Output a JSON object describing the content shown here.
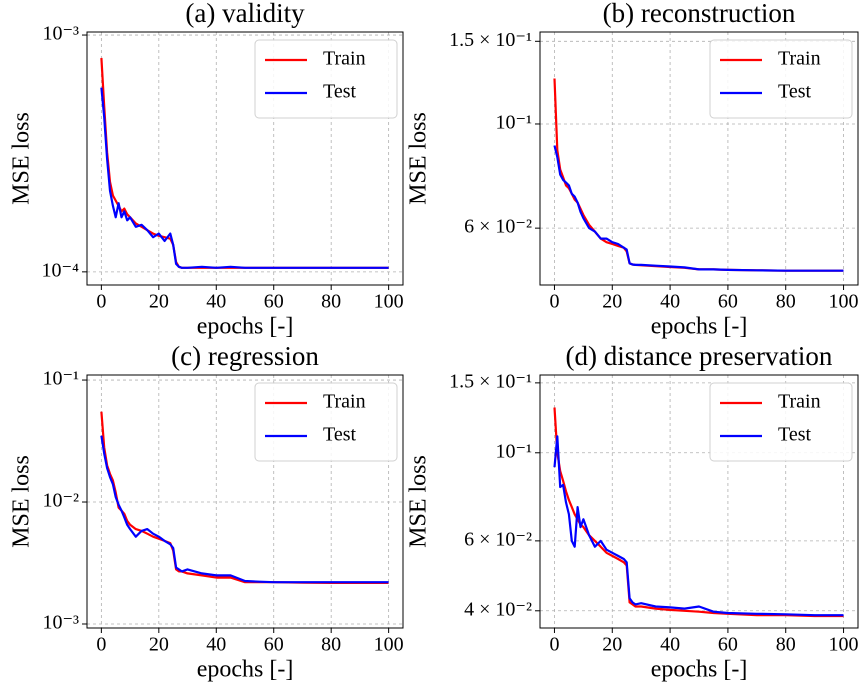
{
  "chart_data": [
    {
      "type": "line",
      "title": "(a) validity",
      "xlabel": "epochs [-]",
      "ylabel": "MSE loss",
      "log_y": true,
      "grid": true,
      "legend": "upper right",
      "x": [
        0,
        1,
        2,
        3,
        4,
        5,
        6,
        7,
        8,
        9,
        10,
        12,
        14,
        16,
        18,
        20,
        22,
        24,
        25,
        26,
        27,
        28,
        30,
        35,
        40,
        45,
        50,
        55,
        60,
        70,
        80,
        90,
        100
      ],
      "series": [
        {
          "name": "Train",
          "color": "#ff0000",
          "values": [
            0.0008,
            0.0005,
            0.00032,
            0.00024,
            0.00021,
            0.0002,
            0.00019,
            0.00018,
            0.000185,
            0.000175,
            0.00017,
            0.00016,
            0.000155,
            0.00015,
            0.000145,
            0.000142,
            0.00014,
            0.000138,
            0.00013,
            0.00011,
            0.000105,
            0.000104,
            0.000104,
            0.000104,
            0.000104,
            0.000104,
            0.000104,
            0.000104,
            0.000104,
            0.000104,
            0.000104,
            0.000104,
            0.000104
          ]
        },
        {
          "name": "Test",
          "color": "#0000ff",
          "values": [
            0.0006,
            0.00045,
            0.0003,
            0.00022,
            0.00019,
            0.00017,
            0.000195,
            0.00017,
            0.00018,
            0.000165,
            0.00017,
            0.000155,
            0.000158,
            0.00015,
            0.00014,
            0.000145,
            0.000135,
            0.000145,
            0.00013,
            0.000108,
            0.000105,
            0.000104,
            0.000104,
            0.000105,
            0.000104,
            0.000105,
            0.000104,
            0.000104,
            0.000104,
            0.000104,
            0.000104,
            0.000104,
            0.000104
          ]
        }
      ],
      "xlim": [
        -5,
        105
      ],
      "xticks": [
        0,
        20,
        40,
        60,
        80,
        100
      ],
      "ylim": [
        8.8e-05,
        0.00103
      ],
      "yticks": [
        {
          "value": 0.001,
          "label": "10⁻³"
        },
        {
          "value": 0.0001,
          "label": "10⁻⁴"
        }
      ]
    },
    {
      "type": "line",
      "title": "(b) reconstruction",
      "xlabel": "epochs [-]",
      "ylabel": "MSE loss",
      "log_y": true,
      "grid": true,
      "legend": "upper right",
      "x": [
        0,
        1,
        2,
        3,
        4,
        5,
        6,
        7,
        8,
        9,
        10,
        12,
        14,
        16,
        18,
        20,
        22,
        24,
        25,
        26,
        27,
        28,
        30,
        35,
        40,
        45,
        50,
        55,
        60,
        70,
        80,
        90,
        100
      ],
      "series": [
        {
          "name": "Train",
          "color": "#ff0000",
          "values": [
            0.125,
            0.088,
            0.08,
            0.077,
            0.074,
            0.073,
            0.071,
            0.069,
            0.068,
            0.066,
            0.064,
            0.061,
            0.059,
            0.057,
            0.056,
            0.0555,
            0.055,
            0.0545,
            0.0535,
            0.0505,
            0.0502,
            0.0501,
            0.05,
            0.0498,
            0.0496,
            0.0494,
            0.049,
            0.049,
            0.0489,
            0.0488,
            0.0487,
            0.0487,
            0.0487
          ]
        },
        {
          "name": "Test",
          "color": "#0000ff",
          "values": [
            0.09,
            0.085,
            0.078,
            0.076,
            0.075,
            0.074,
            0.071,
            0.07,
            0.068,
            0.065,
            0.063,
            0.06,
            0.059,
            0.057,
            0.057,
            0.056,
            0.0555,
            0.0545,
            0.054,
            0.0505,
            0.0502,
            0.0501,
            0.0501,
            0.0499,
            0.0497,
            0.0495,
            0.049,
            0.049,
            0.0489,
            0.0488,
            0.0487,
            0.0487,
            0.0487
          ]
        }
      ],
      "xlim": [
        -5,
        105
      ],
      "xticks": [
        0,
        20,
        40,
        60,
        80,
        100
      ],
      "ylim": [
        0.0454,
        0.157
      ],
      "yticks": [
        {
          "value": 0.15,
          "label": "1.5 × 10⁻¹"
        },
        {
          "value": 0.1,
          "label": "10⁻¹"
        },
        {
          "value": 0.06,
          "label": "6 × 10⁻²"
        }
      ]
    },
    {
      "type": "line",
      "title": "(c) regression",
      "xlabel": "epochs [-]",
      "ylabel": "MSE loss",
      "log_y": true,
      "grid": true,
      "legend": "upper right",
      "x": [
        0,
        1,
        2,
        3,
        4,
        5,
        6,
        7,
        8,
        9,
        10,
        12,
        14,
        16,
        18,
        20,
        22,
        24,
        25,
        26,
        27,
        28,
        30,
        35,
        40,
        45,
        50,
        55,
        60,
        70,
        80,
        90,
        100
      ],
      "series": [
        {
          "name": "Train",
          "color": "#ff0000",
          "values": [
            0.055,
            0.028,
            0.02,
            0.017,
            0.015,
            0.012,
            0.009,
            0.0085,
            0.008,
            0.007,
            0.0065,
            0.006,
            0.0058,
            0.0055,
            0.0052,
            0.005,
            0.0048,
            0.0046,
            0.004,
            0.0028,
            0.0027,
            0.0027,
            0.0026,
            0.0025,
            0.0024,
            0.0024,
            0.0022,
            0.0022,
            0.0022,
            0.00218,
            0.00217,
            0.00217,
            0.00217
          ]
        },
        {
          "name": "Test",
          "color": "#0000ff",
          "values": [
            0.035,
            0.025,
            0.019,
            0.016,
            0.014,
            0.011,
            0.0095,
            0.0085,
            0.0075,
            0.0065,
            0.006,
            0.0052,
            0.0058,
            0.006,
            0.0055,
            0.0052,
            0.0048,
            0.0045,
            0.0042,
            0.0029,
            0.0028,
            0.0027,
            0.0028,
            0.0026,
            0.0025,
            0.0025,
            0.00225,
            0.00222,
            0.0022,
            0.0022,
            0.0022,
            0.0022,
            0.0022
          ]
        }
      ],
      "xlim": [
        -5,
        105
      ],
      "xticks": [
        0,
        20,
        40,
        60,
        80,
        100
      ],
      "ylim": [
        0.000927,
        0.11
      ],
      "yticks": [
        {
          "value": 0.1,
          "label": "10⁻¹"
        },
        {
          "value": 0.01,
          "label": "10⁻²"
        },
        {
          "value": 0.001,
          "label": "10⁻³"
        }
      ]
    },
    {
      "type": "line",
      "title": "(d) distance preservation",
      "xlabel": "epochs [-]",
      "ylabel": "MSE loss",
      "log_y": true,
      "grid": true,
      "legend": "upper right",
      "x": [
        0,
        1,
        2,
        3,
        4,
        5,
        6,
        7,
        8,
        9,
        10,
        12,
        14,
        16,
        18,
        20,
        22,
        24,
        25,
        26,
        27,
        28,
        30,
        35,
        40,
        45,
        50,
        55,
        60,
        70,
        80,
        90,
        100
      ],
      "series": [
        {
          "name": "Train",
          "color": "#ff0000",
          "values": [
            0.13,
            0.1,
            0.09,
            0.085,
            0.08,
            0.076,
            0.073,
            0.07,
            0.068,
            0.066,
            0.065,
            0.062,
            0.06,
            0.058,
            0.056,
            0.055,
            0.054,
            0.053,
            0.052,
            0.042,
            0.0415,
            0.041,
            0.041,
            0.0405,
            0.0402,
            0.04,
            0.0398,
            0.0395,
            0.0393,
            0.039,
            0.039,
            0.0388,
            0.0388
          ]
        },
        {
          "name": "Test",
          "color": "#0000ff",
          "values": [
            0.092,
            0.11,
            0.082,
            0.083,
            0.075,
            0.07,
            0.06,
            0.058,
            0.073,
            0.065,
            0.068,
            0.062,
            0.058,
            0.06,
            0.057,
            0.056,
            0.055,
            0.054,
            0.053,
            0.043,
            0.042,
            0.0415,
            0.0418,
            0.041,
            0.0408,
            0.0405,
            0.041,
            0.0398,
            0.0395,
            0.0393,
            0.0392,
            0.039,
            0.039
          ]
        }
      ],
      "xlim": [
        -5,
        105
      ],
      "xticks": [
        0,
        20,
        40,
        60,
        80,
        100
      ],
      "ylim": [
        0.0362,
        0.157
      ],
      "yticks": [
        {
          "value": 0.15,
          "label": "1.5 × 10⁻¹"
        },
        {
          "value": 0.1,
          "label": "10⁻¹"
        },
        {
          "value": 0.06,
          "label": "6 × 10⁻²"
        },
        {
          "value": 0.04,
          "label": "4 × 10⁻²"
        }
      ]
    }
  ]
}
